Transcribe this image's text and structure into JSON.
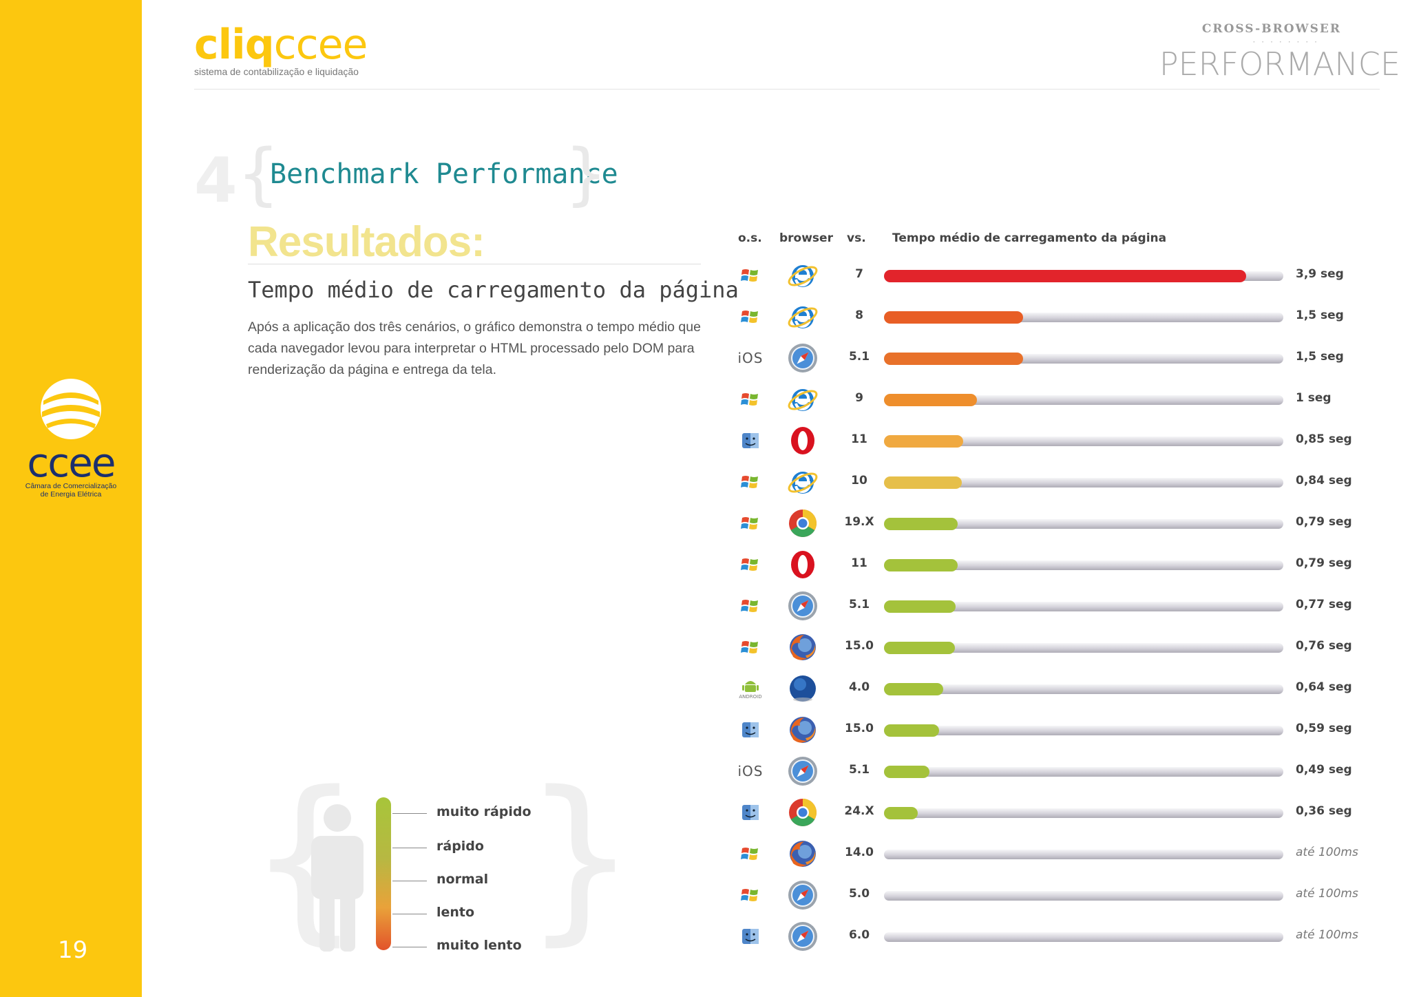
{
  "sidebar": {
    "logo_word": "ccee",
    "logo_sub_1": "Câmara de Comercialização",
    "logo_sub_2": "de Energia Elétrica",
    "page_number": "19"
  },
  "header": {
    "brand_bold": "cliq",
    "brand_light": "ccee",
    "brand_sub": "sistema de contabilização e liquidação",
    "kicker": "CROSS-BROWSER",
    "title": "PERFORMANCE"
  },
  "section": {
    "number": "4",
    "title": "Benchmark Performance",
    "results": "Resultados:",
    "subtitle": "Tempo médio de carregamento da página",
    "description": "Após a aplicação dos três cenários, o gráfico demonstra o tempo médio que cada navegador levou para interpretar o HTML processado pelo DOM para renderização da página e entrega da tela."
  },
  "legend": {
    "items": [
      "muito rápido",
      "rápido",
      "normal",
      "lento",
      "muito lento"
    ]
  },
  "chart_data": {
    "type": "bar",
    "orientation": "horizontal",
    "title": "Tempo médio de carregamento da página",
    "columns": {
      "os": "o.s.",
      "browser": "browser",
      "version": "vs.",
      "metric": "Tempo médio de carregamento da página"
    },
    "unit": "seg",
    "xlim": [
      0,
      4.3
    ],
    "rows": [
      {
        "os": "windows",
        "browser": "ie",
        "version": "7",
        "value": 3.9,
        "label": "3,9 seg",
        "color": "#e2242b"
      },
      {
        "os": "windows",
        "browser": "ie",
        "version": "8",
        "value": 1.5,
        "label": "1,5 seg",
        "color": "#e85e25"
      },
      {
        "os": "ios",
        "browser": "safari",
        "version": "5.1",
        "value": 1.5,
        "label": "1,5 seg",
        "color": "#e8712a"
      },
      {
        "os": "windows",
        "browser": "ie",
        "version": "9",
        "value": 1.0,
        "label": "1 seg",
        "color": "#ee8e2c"
      },
      {
        "os": "mac",
        "browser": "opera",
        "version": "11",
        "value": 0.85,
        "label": "0,85 seg",
        "color": "#f0a940"
      },
      {
        "os": "windows",
        "browser": "ie",
        "version": "10",
        "value": 0.84,
        "label": "0,84 seg",
        "color": "#e6bf4a"
      },
      {
        "os": "windows",
        "browser": "chrome",
        "version": "19.X",
        "value": 0.79,
        "label": "0,79 seg",
        "color": "#a4c23b"
      },
      {
        "os": "windows",
        "browser": "opera",
        "version": "11",
        "value": 0.79,
        "label": "0,79 seg",
        "color": "#a4c23b"
      },
      {
        "os": "windows",
        "browser": "safari",
        "version": "5.1",
        "value": 0.77,
        "label": "0,77 seg",
        "color": "#a4c23b"
      },
      {
        "os": "windows",
        "browser": "firefox",
        "version": "15.0",
        "value": 0.76,
        "label": "0,76 seg",
        "color": "#a4c23b"
      },
      {
        "os": "android",
        "browser": "android-browser",
        "version": "4.0",
        "value": 0.64,
        "label": "0,64 seg",
        "color": "#a4c23b"
      },
      {
        "os": "mac",
        "browser": "firefox",
        "version": "15.0",
        "value": 0.59,
        "label": "0,59 seg",
        "color": "#a4c23b"
      },
      {
        "os": "ios",
        "browser": "safari",
        "version": "5.1",
        "value": 0.49,
        "label": "0,49 seg",
        "color": "#a4c23b"
      },
      {
        "os": "mac",
        "browser": "chrome",
        "version": "24.X",
        "value": 0.36,
        "label": "0,36 seg",
        "color": "#a4c23b"
      },
      {
        "os": "windows",
        "browser": "firefox",
        "version": "14.0",
        "value": 0.1,
        "label": "até 100ms",
        "color": "#a4c23b"
      },
      {
        "os": "windows",
        "browser": "safari",
        "version": "5.0",
        "value": 0.1,
        "label": "até 100ms",
        "color": "#a4c23b"
      },
      {
        "os": "mac",
        "browser": "safari",
        "version": "6.0",
        "value": 0.1,
        "label": "até 100ms",
        "color": "#a4c23b"
      }
    ]
  },
  "os_badges": {
    "ios": "iOS",
    "android": "ANDROID"
  }
}
